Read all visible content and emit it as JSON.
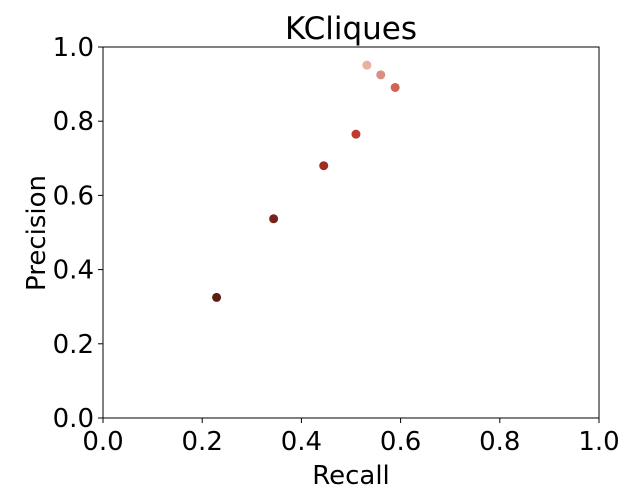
{
  "chart_data": {
    "type": "scatter",
    "title": "KCliques",
    "xlabel": "Recall",
    "ylabel": "Precision",
    "xlim": [
      0.0,
      1.0
    ],
    "ylim": [
      0.0,
      1.0
    ],
    "xticks": [
      "0.0",
      "0.2",
      "0.4",
      "0.6",
      "0.8",
      "1.0"
    ],
    "yticks": [
      "0.0",
      "0.2",
      "0.4",
      "0.6",
      "0.8",
      "1.0"
    ],
    "grid": false,
    "legend": "none",
    "points": [
      {
        "x": 0.229,
        "y": 0.325,
        "color": "#5c1e12"
      },
      {
        "x": 0.344,
        "y": 0.537,
        "color": "#76221a"
      },
      {
        "x": 0.445,
        "y": 0.68,
        "color": "#a12c22"
      },
      {
        "x": 0.51,
        "y": 0.765,
        "color": "#c13a2f"
      },
      {
        "x": 0.589,
        "y": 0.891,
        "color": "#cf6456"
      },
      {
        "x": 0.56,
        "y": 0.925,
        "color": "#d98e82"
      },
      {
        "x": 0.532,
        "y": 0.951,
        "color": "#e8b0a2"
      }
    ]
  }
}
